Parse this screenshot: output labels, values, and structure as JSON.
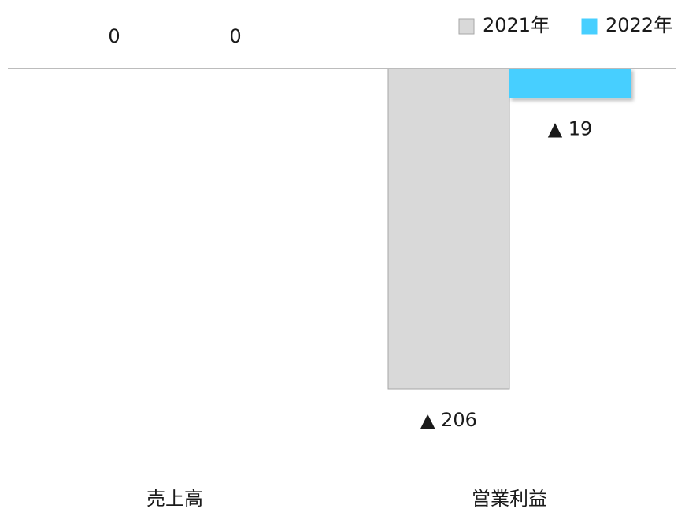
{
  "chart_data": {
    "type": "bar",
    "categories": [
      "売上高",
      "営業利益"
    ],
    "series": [
      {
        "name": "2021年",
        "values": [
          0,
          -206
        ],
        "labels": [
          "0",
          "▲ 206"
        ],
        "color": "#d9d9d9",
        "border": "#a6a6a6"
      },
      {
        "name": "2022年",
        "values": [
          0,
          -19
        ],
        "labels": [
          "0",
          "▲ 19"
        ],
        "color": "#47cfff",
        "border": "#47cfff"
      }
    ],
    "ylim": [
      -206,
      0
    ],
    "grid": false,
    "legend": "top-right",
    "xlabel": "",
    "ylabel": ""
  }
}
